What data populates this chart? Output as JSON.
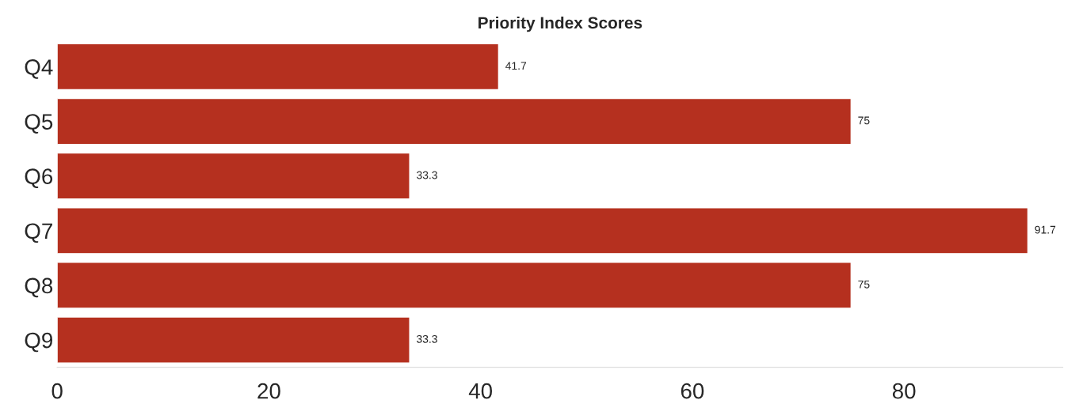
{
  "chart_data": {
    "type": "bar",
    "orientation": "horizontal",
    "title": "Priority Index Scores",
    "categories": [
      "Q4",
      "Q5",
      "Q6",
      "Q7",
      "Q8",
      "Q9"
    ],
    "values": [
      41.7,
      75,
      33.3,
      91.7,
      75,
      33.3
    ],
    "color": "#b5301f",
    "xlim": [
      0,
      95
    ],
    "xticks": [
      0,
      20,
      40,
      60,
      80
    ],
    "data_labels": true,
    "grid": false,
    "legend": false
  }
}
